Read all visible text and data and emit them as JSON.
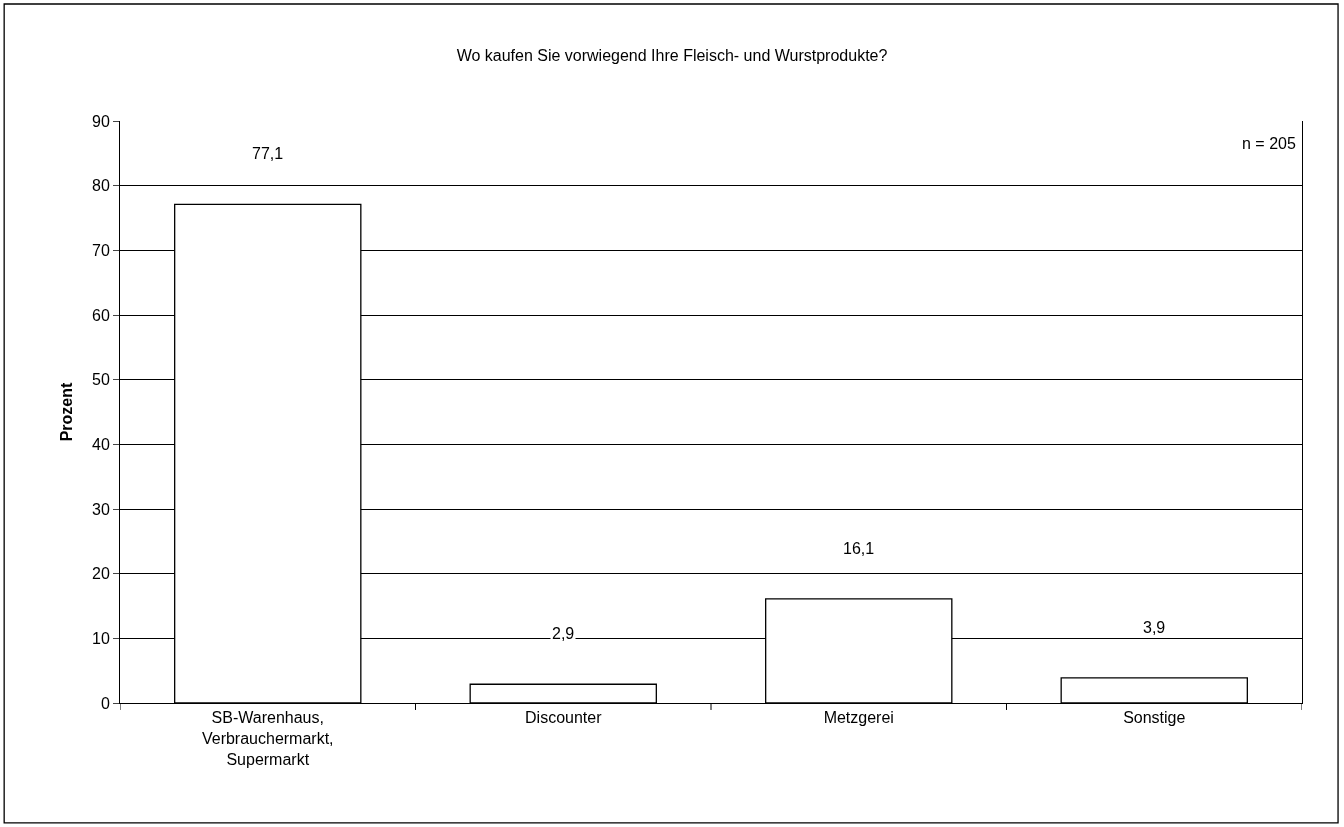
{
  "chart_data": {
    "type": "bar",
    "title": "Wo kaufen Sie vorwiegend Ihre Fleisch- und Wurstprodukte?",
    "ylabel": "Prozent",
    "categories": [
      "SB-Warenhaus, Verbrauchermarkt, Supermarkt",
      "Discounter",
      "Metzgerei",
      "Sonstige"
    ],
    "values": [
      77.1,
      2.9,
      16.1,
      3.9
    ],
    "value_labels": [
      "77,1",
      "2,9",
      "16,1",
      "3,9"
    ],
    "color": "#ffffff",
    "ylim": [
      0,
      90
    ],
    "yticks": [
      0,
      10,
      20,
      30,
      40,
      50,
      60,
      70,
      80,
      90
    ],
    "grid": "y",
    "legend": false,
    "annotations": [
      "n = 205"
    ]
  }
}
